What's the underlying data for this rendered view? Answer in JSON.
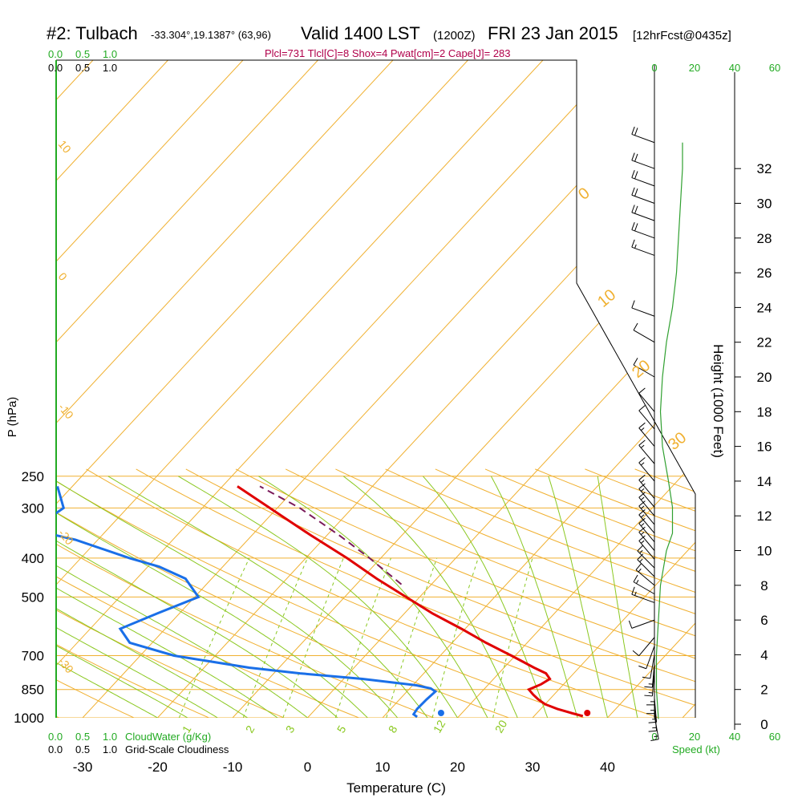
{
  "title": {
    "station": "#2: Tulbach",
    "coords": "-33.304°,19.1387° (63,96)",
    "valid_label": "Valid 1400 LST",
    "utc": "(1200Z)",
    "date": "FRI 23 Jan 2015",
    "forecast": "[12hrFcst@0435z]"
  },
  "stats_line": "Plcl=731 Tlcl[C]=8 Shox=4 Pwat[cm]=2 Cape[J]= 283",
  "colors": {
    "temperature": "#e00000",
    "dewpoint": "#1a6fe8",
    "parcel": "#7a1a5a",
    "isotherm": "#f0b030",
    "dry_adiabat": "#f0b030",
    "moist_adiabat": "#8ac820",
    "mixing_ratio": "#8ac820",
    "speed_profile": "#30a030",
    "scale_green": "#22aa22"
  },
  "chart_data": {
    "type": "skew-t sounding",
    "xlabel": "Temperature (C)",
    "ylabel": "P (hPa)",
    "right_axis_label": "Height (1000 Feet)",
    "x_ticks": [
      -30,
      -20,
      -10,
      0,
      10,
      20,
      30,
      40
    ],
    "pressure_ticks": [
      250,
      300,
      400,
      500,
      700,
      850,
      1000
    ],
    "height_ticks": [
      0,
      2,
      4,
      6,
      8,
      10,
      12,
      14,
      16,
      18,
      20,
      22,
      24,
      26,
      28,
      30,
      32
    ],
    "xlim": [
      -34,
      46
    ],
    "plim": [
      250,
      1000
    ],
    "temperature_profile": [
      {
        "p": 990,
        "t": 36.5
      },
      {
        "p": 975,
        "t": 34.8
      },
      {
        "p": 950,
        "t": 32.2
      },
      {
        "p": 925,
        "t": 30.0
      },
      {
        "p": 900,
        "t": 28.5
      },
      {
        "p": 875,
        "t": 27.2
      },
      {
        "p": 850,
        "t": 26.0
      },
      {
        "p": 825,
        "t": 27.0
      },
      {
        "p": 800,
        "t": 27.5
      },
      {
        "p": 775,
        "t": 26.3
      },
      {
        "p": 750,
        "t": 24.0
      },
      {
        "p": 700,
        "t": 19.5
      },
      {
        "p": 650,
        "t": 14.5
      },
      {
        "p": 600,
        "t": 9.5
      },
      {
        "p": 550,
        "t": 3.8
      },
      {
        "p": 500,
        "t": -1.8
      },
      {
        "p": 450,
        "t": -8.0
      },
      {
        "p": 400,
        "t": -14.5
      },
      {
        "p": 350,
        "t": -22.3
      },
      {
        "p": 300,
        "t": -31.0
      },
      {
        "p": 265,
        "t": -38.0
      }
    ],
    "dewpoint_profile": [
      {
        "p": 995,
        "t": 14.5
      },
      {
        "p": 980,
        "t": 13.7
      },
      {
        "p": 950,
        "t": 13.5
      },
      {
        "p": 900,
        "t": 13.6
      },
      {
        "p": 860,
        "t": 13.8
      },
      {
        "p": 845,
        "t": 12.8
      },
      {
        "p": 830,
        "t": 10.5
      },
      {
        "p": 800,
        "t": 2.5
      },
      {
        "p": 775,
        "t": -6.5
      },
      {
        "p": 750,
        "t": -14.0
      },
      {
        "p": 700,
        "t": -25.5
      },
      {
        "p": 650,
        "t": -33.0
      },
      {
        "p": 600,
        "t": -36.0
      },
      {
        "p": 550,
        "t": -33.0
      },
      {
        "p": 500,
        "t": -29.5
      },
      {
        "p": 450,
        "t": -33.5
      },
      {
        "p": 420,
        "t": -38.5
      },
      {
        "p": 400,
        "t": -43.5
      },
      {
        "p": 360,
        "t": -53.0
      },
      {
        "p": 340,
        "t": -60.0
      },
      {
        "p": 300,
        "t": -58.5
      },
      {
        "p": 265,
        "t": -62.0
      }
    ],
    "surface_temperature_marker": {
      "p": 1000,
      "t": 37.3
    },
    "surface_dewpoint_marker": {
      "p": 1000,
      "t": 17.8
    },
    "parcel_path": [
      {
        "p": 465,
        "t": -4.0
      },
      {
        "p": 400,
        "t": -11.5
      },
      {
        "p": 350,
        "t": -18.5
      },
      {
        "p": 300,
        "t": -27.0
      },
      {
        "p": 265,
        "t": -35.0
      }
    ],
    "isotherm_labels": [
      "0",
      "10",
      "20",
      "30"
    ],
    "dry_adiabat_labels": [
      "10",
      "0",
      "-10",
      "-20",
      "-30"
    ],
    "mixing_ratio_labels": [
      "1",
      "2",
      "3",
      "5",
      "8",
      "12",
      "20"
    ],
    "cloud_scale": {
      "values": [
        "0.0",
        "0.5",
        "1.0"
      ],
      "cloudwater_label": "CloudWater (g/Kg)",
      "cloudiness_label": "Grid-Scale Cloudiness"
    },
    "wind_speed_scale": {
      "ticks": [
        "0",
        "20",
        "40",
        "60"
      ],
      "label": "Speed (kt)"
    },
    "speed_profile": [
      {
        "h": 0.3,
        "s": 2
      },
      {
        "h": 2,
        "s": 1
      },
      {
        "h": 4,
        "s": 1
      },
      {
        "h": 6,
        "s": 2
      },
      {
        "h": 8,
        "s": 3
      },
      {
        "h": 10,
        "s": 6
      },
      {
        "h": 11,
        "s": 9
      },
      {
        "h": 12.5,
        "s": 9
      },
      {
        "h": 14,
        "s": 7
      },
      {
        "h": 16,
        "s": 4
      },
      {
        "h": 18,
        "s": 3
      },
      {
        "h": 20,
        "s": 4
      },
      {
        "h": 22,
        "s": 6
      },
      {
        "h": 24,
        "s": 9
      },
      {
        "h": 26,
        "s": 11
      },
      {
        "h": 28,
        "s": 12
      },
      {
        "h": 30,
        "s": 13
      },
      {
        "h": 32,
        "s": 14
      },
      {
        "h": 33.5,
        "s": 14
      }
    ],
    "wind_barbs": [
      {
        "h": 0.5,
        "speed": 15,
        "dir": 170
      },
      {
        "h": 1.0,
        "speed": 15,
        "dir": 175
      },
      {
        "h": 1.5,
        "speed": 15,
        "dir": 175
      },
      {
        "h": 2.0,
        "speed": 15,
        "dir": 180
      },
      {
        "h": 2.5,
        "speed": 15,
        "dir": 180
      },
      {
        "h": 3.0,
        "speed": 15,
        "dir": 185
      },
      {
        "h": 3.5,
        "speed": 15,
        "dir": 185
      },
      {
        "h": 4.0,
        "speed": 10,
        "dir": 190
      },
      {
        "h": 4.5,
        "speed": 10,
        "dir": 200
      },
      {
        "h": 5.0,
        "speed": 10,
        "dir": 220
      },
      {
        "h": 6.0,
        "speed": 10,
        "dir": 250
      },
      {
        "h": 7.0,
        "speed": 15,
        "dir": 290
      },
      {
        "h": 7.5,
        "speed": 15,
        "dir": 300
      },
      {
        "h": 8.0,
        "speed": 15,
        "dir": 310
      },
      {
        "h": 8.5,
        "speed": 15,
        "dir": 315
      },
      {
        "h": 9.0,
        "speed": 15,
        "dir": 315
      },
      {
        "h": 9.5,
        "speed": 15,
        "dir": 320
      },
      {
        "h": 10.0,
        "speed": 15,
        "dir": 320
      },
      {
        "h": 10.5,
        "speed": 15,
        "dir": 320
      },
      {
        "h": 11.0,
        "speed": 15,
        "dir": 320
      },
      {
        "h": 11.5,
        "speed": 15,
        "dir": 320
      },
      {
        "h": 12.0,
        "speed": 15,
        "dir": 320
      },
      {
        "h": 12.5,
        "speed": 15,
        "dir": 320
      },
      {
        "h": 13.0,
        "speed": 15,
        "dir": 320
      },
      {
        "h": 14.0,
        "speed": 15,
        "dir": 320
      },
      {
        "h": 15.0,
        "speed": 15,
        "dir": 320
      },
      {
        "h": 16.0,
        "speed": 15,
        "dir": 320
      },
      {
        "h": 17.0,
        "speed": 10,
        "dir": 320
      },
      {
        "h": 18.0,
        "speed": 10,
        "dir": 320
      },
      {
        "h": 20.0,
        "speed": 10,
        "dir": 300
      },
      {
        "h": 22.0,
        "speed": 10,
        "dir": 300
      },
      {
        "h": 23.5,
        "speed": 10,
        "dir": 290
      },
      {
        "h": 27.0,
        "speed": 15,
        "dir": 290
      },
      {
        "h": 28.0,
        "speed": 20,
        "dir": 290
      },
      {
        "h": 29.0,
        "speed": 20,
        "dir": 290
      },
      {
        "h": 30.0,
        "speed": 20,
        "dir": 290
      },
      {
        "h": 31.0,
        "speed": 20,
        "dir": 290
      },
      {
        "h": 32.0,
        "speed": 20,
        "dir": 290
      },
      {
        "h": 33.5,
        "speed": 20,
        "dir": 290
      }
    ]
  }
}
